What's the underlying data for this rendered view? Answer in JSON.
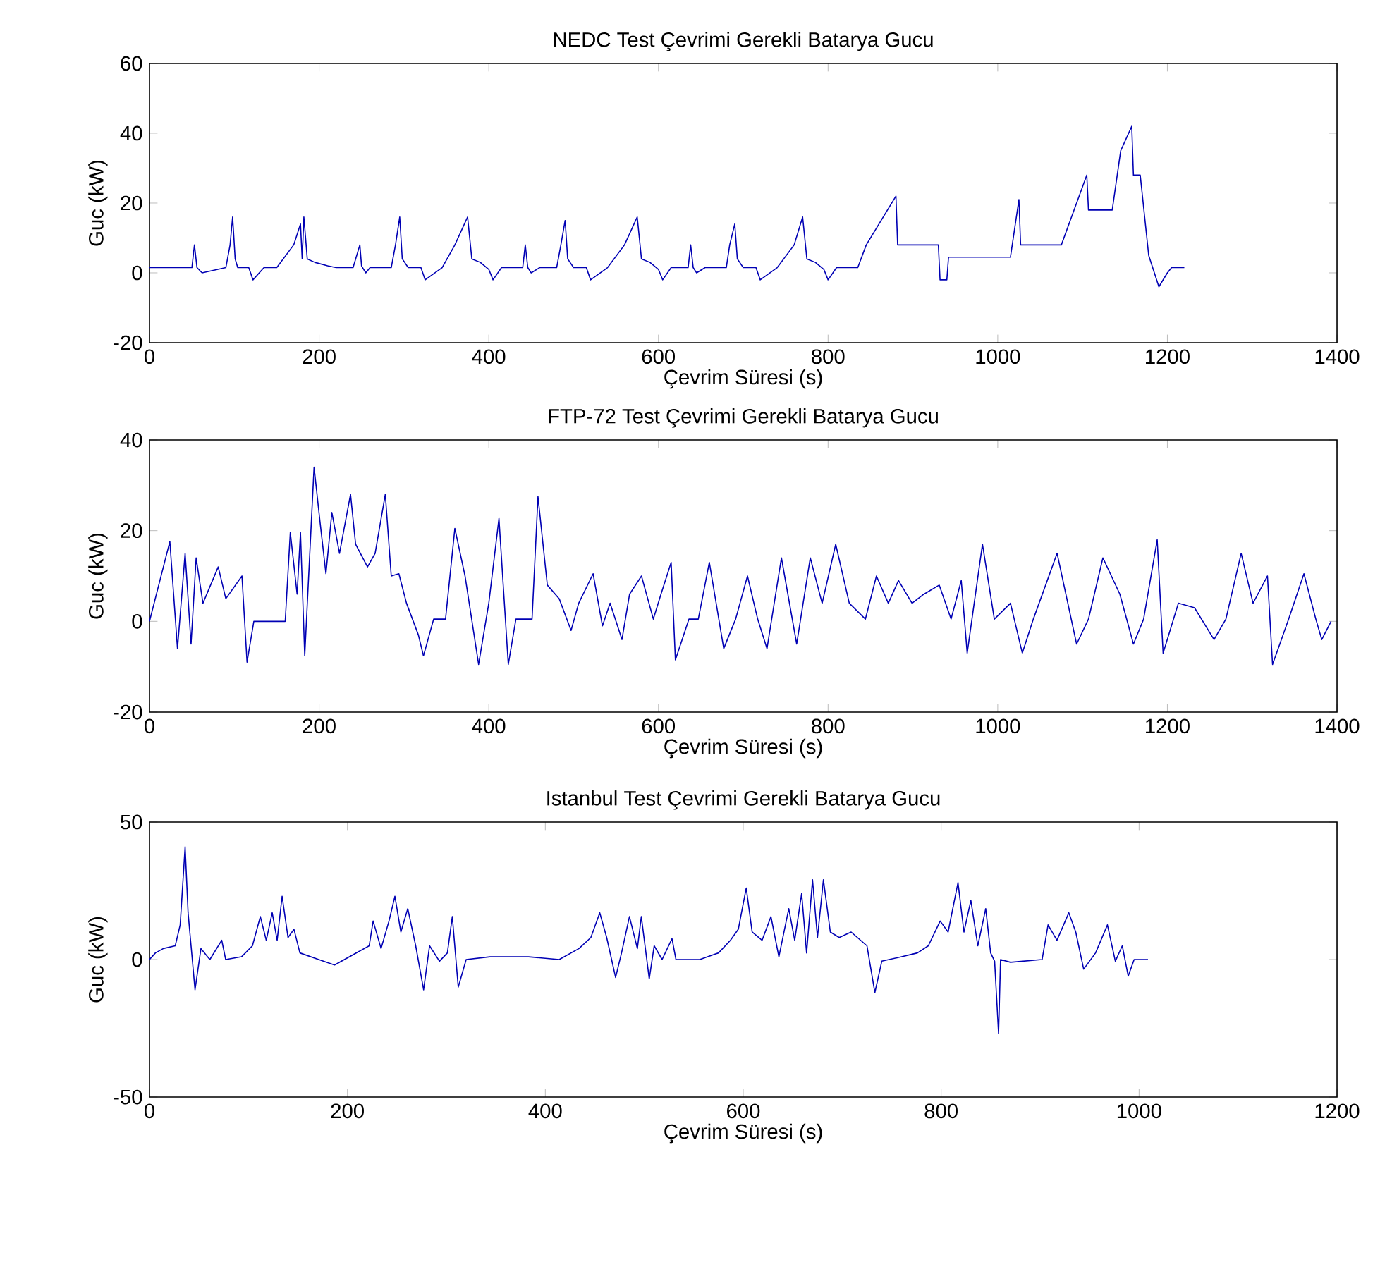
{
  "chart_data": [
    {
      "type": "line",
      "title": "NEDC Test Çevrimi Gerekli Batarya Gucu",
      "xlabel": "Çevrim Süresi (s)",
      "ylabel": "Guc (kW)",
      "xlim": [
        0,
        1400
      ],
      "ylim": [
        -20,
        60
      ],
      "xticks": [
        0,
        200,
        400,
        600,
        800,
        1000,
        1200,
        1400
      ],
      "yticks": [
        -20,
        0,
        20,
        40,
        60
      ],
      "series": [
        {
          "color": "#0000b4",
          "x": [
            0,
            50,
            53,
            56,
            62,
            90,
            95,
            98,
            101,
            104,
            117,
            122,
            135,
            150,
            170,
            178,
            180,
            182,
            186,
            195,
            210,
            220,
            240,
            248,
            250,
            255,
            260,
            285,
            290,
            295,
            298,
            305,
            320,
            325,
            345,
            360,
            375,
            380,
            390,
            400,
            405,
            415,
            440,
            443,
            446,
            450,
            460,
            480,
            485,
            490,
            493,
            500,
            515,
            520,
            540,
            560,
            575,
            580,
            590,
            600,
            605,
            615,
            635,
            638,
            641,
            645,
            655,
            680,
            684,
            690,
            693,
            700,
            715,
            720,
            740,
            760,
            770,
            775,
            785,
            795,
            800,
            810,
            835,
            845,
            880,
            882,
            930,
            932,
            940,
            942,
            1015,
            1025,
            1027,
            1075,
            1105,
            1107,
            1135,
            1145,
            1158,
            1160,
            1168,
            1178,
            1190,
            1200,
            1205,
            1220
          ],
          "values": [
            1.5,
            1.5,
            8,
            1.5,
            0,
            1.5,
            8,
            16,
            4,
            1.5,
            1.5,
            -2,
            1.5,
            1.5,
            8,
            14,
            4,
            16,
            4,
            3,
            2,
            1.5,
            1.5,
            8,
            2,
            0,
            1.5,
            1.5,
            8,
            16,
            4,
            1.5,
            1.5,
            -2,
            1.5,
            8,
            16,
            4,
            3,
            1,
            -2,
            1.5,
            1.5,
            8,
            1.5,
            0,
            1.5,
            1.5,
            8,
            15,
            4,
            1.5,
            1.5,
            -2,
            1.5,
            8,
            16,
            4,
            3,
            1,
            -2,
            1.5,
            1.5,
            8,
            1.5,
            0,
            1.5,
            1.5,
            8,
            14,
            4,
            1.5,
            1.5,
            -2,
            1.5,
            8,
            16,
            4,
            3,
            1,
            -2,
            1.5,
            1.5,
            8,
            22,
            8,
            8,
            -2,
            -2,
            4.5,
            4.5,
            21,
            8,
            8,
            28,
            18,
            18,
            35,
            42,
            28,
            28,
            5,
            -4,
            0,
            1.5,
            1.5
          ]
        }
      ]
    },
    {
      "type": "line",
      "title": "FTP-72 Test Çevrimi Gerekli Batarya Gucu",
      "xlabel": "Çevrim Süresi (s)",
      "ylabel": "Guc (kW)",
      "xlim": [
        0,
        1400
      ],
      "ylim": [
        -20,
        40
      ],
      "xticks": [
        0,
        200,
        400,
        600,
        800,
        1000,
        1200,
        1400
      ],
      "yticks": [
        -20,
        0,
        20,
        40
      ],
      "series": [
        {
          "color": "#0000b4",
          "x": [
            0,
            24,
            33,
            42,
            49,
            55,
            63,
            81,
            90,
            109,
            115,
            123,
            160,
            166,
            174,
            178,
            183,
            194,
            201,
            208,
            215,
            224,
            237,
            243,
            257,
            266,
            278,
            285,
            294,
            303,
            317,
            323,
            335,
            349,
            360,
            372,
            388,
            400,
            412,
            423,
            432,
            451,
            458,
            469,
            483,
            497,
            506,
            523,
            534,
            543,
            557,
            566,
            580,
            594,
            603,
            615,
            620,
            636,
            647,
            660,
            677,
            691,
            705,
            717,
            728,
            745,
            763,
            779,
            793,
            809,
            825,
            844,
            857,
            871,
            883,
            899,
            913,
            931,
            945,
            957,
            964,
            982,
            996,
            1015,
            1029,
            1042,
            1070,
            1093,
            1107,
            1124,
            1144,
            1160,
            1172,
            1188,
            1195,
            1213,
            1232,
            1255,
            1269,
            1287,
            1301,
            1318,
            1324,
            1343,
            1361,
            1375,
            1382,
            1393
          ],
          "values": [
            0,
            17.6,
            -6,
            15,
            -5,
            14,
            4,
            12,
            5,
            10,
            -9,
            0,
            0,
            19.6,
            6,
            19.6,
            -7.6,
            34,
            22,
            10.5,
            24,
            15,
            28,
            17,
            12,
            15,
            28,
            10,
            10.5,
            4,
            -3,
            -7.6,
            0.5,
            0.5,
            20.5,
            10,
            -9.5,
            4,
            22.7,
            -9.5,
            0.5,
            0.5,
            27.5,
            8,
            5,
            -2,
            4,
            10.5,
            -1,
            4,
            -4,
            6,
            10,
            0.5,
            6,
            13,
            -8.5,
            0.5,
            0.5,
            13,
            -6,
            0.5,
            10,
            0.5,
            -6,
            14,
            -5,
            14,
            4,
            17,
            4,
            0.5,
            10,
            4,
            9,
            4,
            6,
            8,
            0.5,
            9,
            -7,
            17,
            0.5,
            4,
            -7,
            0.5,
            15,
            -5,
            0.5,
            14,
            6,
            -5,
            0.5,
            18,
            -7,
            4,
            3,
            -4,
            0.5,
            15,
            4,
            10,
            -9.5,
            0.5,
            10.5,
            0.5,
            -4,
            0
          ]
        }
      ]
    },
    {
      "type": "line",
      "title": "Istanbul Test Çevrimi Gerekli Batarya Gucu",
      "xlabel": "Çevrim Süresi (s)",
      "ylabel": "Guc (kW)",
      "xlim": [
        0,
        1200
      ],
      "ylim": [
        -50,
        50
      ],
      "xticks": [
        0,
        200,
        400,
        600,
        800,
        1000,
        1200
      ],
      "yticks": [
        -50,
        0,
        50
      ],
      "series": [
        {
          "color": "#0000b4",
          "x": [
            0,
            6,
            14,
            26,
            31,
            36,
            39,
            42,
            46,
            52,
            61,
            73,
            77,
            93,
            104,
            112,
            118,
            124,
            129,
            134,
            140,
            146,
            152,
            171,
            187,
            202,
            222,
            226,
            234,
            242,
            248,
            254,
            261,
            269,
            277,
            283,
            293,
            301,
            306,
            312,
            320,
            344,
            383,
            414,
            434,
            446,
            455,
            462,
            471,
            477,
            485,
            493,
            497,
            505,
            510,
            518,
            528,
            532,
            556,
            575,
            587,
            595,
            603,
            609,
            619,
            628,
            636,
            646,
            652,
            659,
            664,
            670,
            675,
            681,
            688,
            697,
            709,
            725,
            733,
            740,
            760,
            776,
            787,
            799,
            807,
            817,
            823,
            830,
            837,
            845,
            850,
            854,
            858,
            860,
            870,
            902,
            908,
            917,
            929,
            936,
            944,
            956,
            968,
            976,
            983,
            989,
            995,
            1009
          ],
          "values": [
            0,
            2.4,
            4,
            5,
            12.6,
            41,
            17,
            5,
            -11,
            4,
            0,
            7,
            0,
            1,
            5,
            15.6,
            7,
            17,
            7,
            23,
            8,
            11,
            2.4,
            0,
            -2,
            1,
            5,
            14,
            4,
            14,
            23,
            10,
            18.5,
            5,
            -11,
            5,
            -0.6,
            2.4,
            15.6,
            -10,
            0,
            1,
            1,
            0,
            4,
            8,
            17,
            8,
            -6.5,
            2.4,
            15.6,
            4,
            15.6,
            -7,
            5,
            0,
            7.6,
            0,
            0,
            2.4,
            7,
            11,
            26,
            10,
            7,
            15.6,
            1,
            18.5,
            7,
            24,
            2.4,
            29,
            8,
            29,
            10,
            8,
            10,
            5,
            -12,
            -0.6,
            1,
            2.4,
            5,
            14,
            10,
            28,
            10,
            21.5,
            5,
            18.5,
            2.4,
            -0.6,
            -27,
            0,
            -1,
            0,
            12.6,
            7,
            17,
            10,
            -3.5,
            2.4,
            12.6,
            -0.6,
            5,
            -6,
            0,
            0
          ]
        }
      ]
    }
  ]
}
